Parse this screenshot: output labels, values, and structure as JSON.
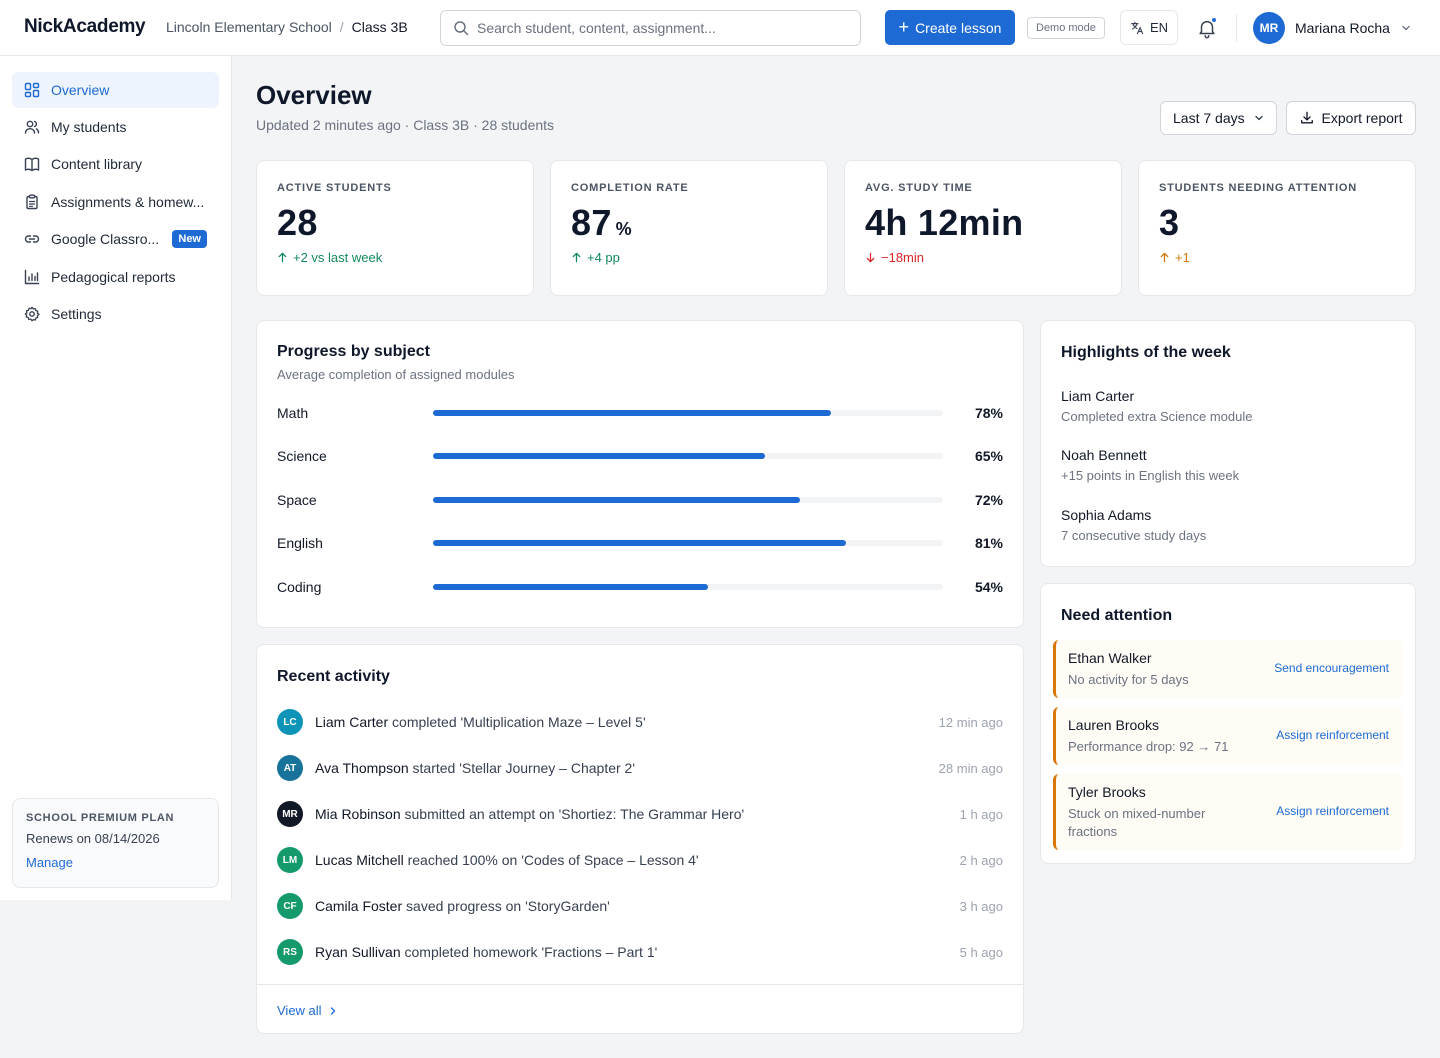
{
  "app": {
    "logo": "NickAcademy"
  },
  "breadcrumb": {
    "school": "Lincoln Elementary School",
    "separator": "/",
    "class": "Class 3B"
  },
  "search": {
    "placeholder": "Search student, content, assignment..."
  },
  "header": {
    "create_label": "Create lesson",
    "demo_label": "Demo mode",
    "lang_label": "EN",
    "user_initials": "MR",
    "user_name": "Mariana Rocha"
  },
  "sidebar": {
    "items": [
      {
        "label": "Overview",
        "icon": "dashboard-icon",
        "active": true
      },
      {
        "label": "My students",
        "icon": "users-icon"
      },
      {
        "label": "Content library",
        "icon": "book-icon"
      },
      {
        "label": "Assignments & homew...",
        "icon": "clipboard-icon"
      },
      {
        "label": "Google Classro...",
        "icon": "link-icon",
        "badge": "New"
      },
      {
        "label": "Pedagogical reports",
        "icon": "bar-chart-icon"
      },
      {
        "label": "Settings",
        "icon": "gear-icon"
      }
    ],
    "plan": {
      "title": "SCHOOL PREMIUM PLAN",
      "renews": "Renews on 08/14/2026",
      "manage": "Manage"
    }
  },
  "page": {
    "title": "Overview",
    "subtitle": "Updated 2 minutes ago · Class 3B · 28 students",
    "range_label": "Last 7 days",
    "export_label": "Export report"
  },
  "kpis": [
    {
      "label": "ACTIVE STUDENTS",
      "value": "28",
      "unit": "",
      "delta": "+2 vs last week",
      "trend": "up",
      "color": "#12895b"
    },
    {
      "label": "COMPLETION RATE",
      "value": "87",
      "unit": "%",
      "delta": "+4 pp",
      "trend": "up",
      "color": "#12895b"
    },
    {
      "label": "AVG. STUDY TIME",
      "value": "4h 12min",
      "unit": "",
      "delta": "−18min",
      "trend": "down",
      "color": "#dc2626"
    },
    {
      "label": "STUDENTS NEEDING ATTENTION",
      "value": "3",
      "unit": "",
      "delta": "+1",
      "trend": "up",
      "color": "#d97706"
    }
  ],
  "progress": {
    "title": "Progress by subject",
    "subtitle": "Average completion of assigned modules",
    "subjects": [
      {
        "name": "Math",
        "pct": "78%",
        "value": 78
      },
      {
        "name": "Science",
        "pct": "65%",
        "value": 65
      },
      {
        "name": "Space",
        "pct": "72%",
        "value": 72
      },
      {
        "name": "English",
        "pct": "81%",
        "value": 81
      },
      {
        "name": "Coding",
        "pct": "54%",
        "value": 54
      }
    ]
  },
  "activity": {
    "title": "Recent activity",
    "items": [
      {
        "initials": "LC",
        "color": "#0e94b8",
        "name": "Liam Carter",
        "text": "completed 'Multiplication Maze – Level 5'",
        "time": "12 min ago"
      },
      {
        "initials": "AT",
        "color": "#17739a",
        "name": "Ava Thompson",
        "text": "started 'Stellar Journey – Chapter 2'",
        "time": "28 min ago"
      },
      {
        "initials": "MR",
        "color": "#111827",
        "name": "Mia Robinson",
        "text": "submitted an attempt on 'Shortiez: The Grammar Hero'",
        "time": "1 h ago"
      },
      {
        "initials": "LM",
        "color": "#159a6b",
        "name": "Lucas Mitchell",
        "text": "reached 100% on 'Codes of Space – Lesson 4'",
        "time": "2 h ago"
      },
      {
        "initials": "CF",
        "color": "#159a6b",
        "name": "Camila Foster",
        "text": "saved progress on 'StoryGarden'",
        "time": "3 h ago"
      },
      {
        "initials": "RS",
        "color": "#159a6b",
        "name": "Ryan Sullivan",
        "text": "completed homework 'Fractions – Part 1'",
        "time": "5 h ago"
      }
    ],
    "view_all": "View all"
  },
  "highlights": {
    "title": "Highlights of the week",
    "items": [
      {
        "name": "Liam Carter",
        "desc": "Completed extra Science module"
      },
      {
        "name": "Noah Bennett",
        "desc": "+15 points in English this week"
      },
      {
        "name": "Sophia Adams",
        "desc": "7 consecutive study days"
      }
    ]
  },
  "attention": {
    "title": "Need attention",
    "items": [
      {
        "name": "Ethan Walker",
        "desc": "No activity for 5 days",
        "action": "Send encouragement"
      },
      {
        "name": "Lauren Brooks",
        "desc": "Performance drop: 92 → 71",
        "action": "Assign reinforcement"
      },
      {
        "name": "Tyler Brooks",
        "desc": "Stuck on mixed-number fractions",
        "action": "Assign reinforcement"
      }
    ]
  }
}
